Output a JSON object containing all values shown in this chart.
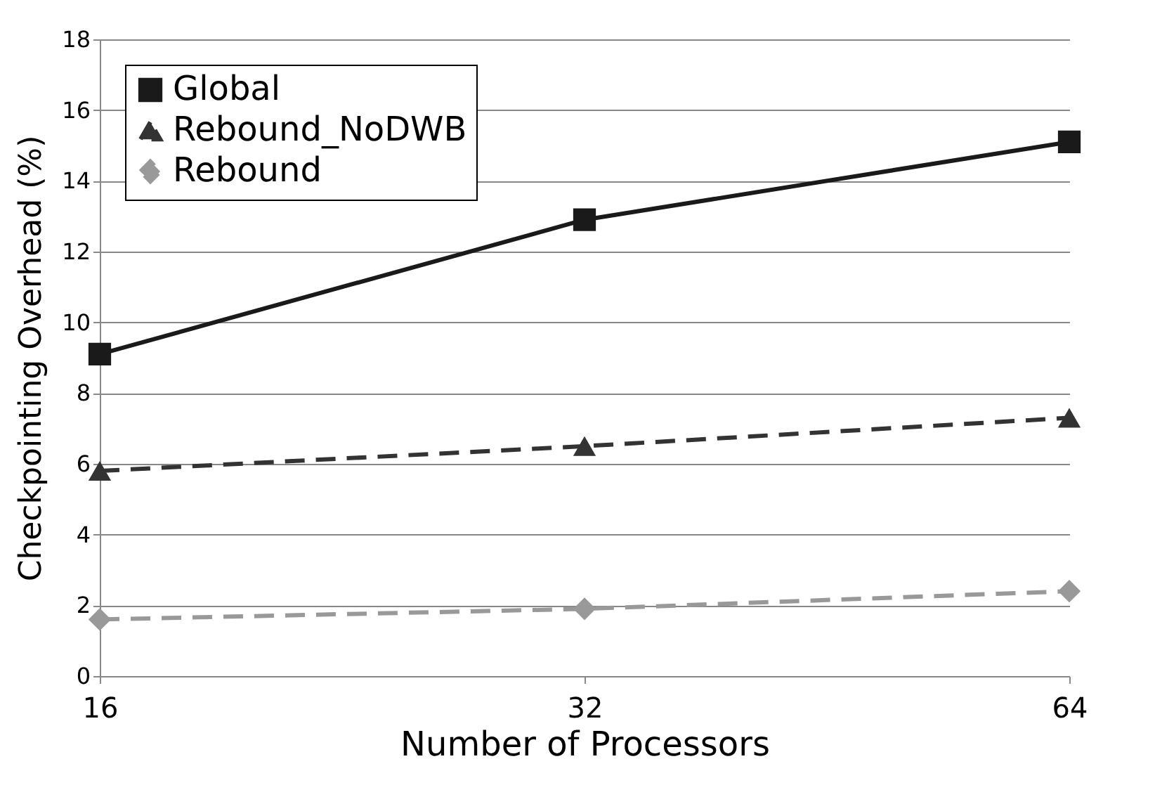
{
  "chart_data": {
    "type": "line",
    "xlabel": "Number of Processors",
    "ylabel": "Checkpointing Overhead (%)",
    "categories": [
      "16",
      "32",
      "64"
    ],
    "series": [
      {
        "name": "Global",
        "color": "#1a1a1a",
        "marker": "square",
        "line_style": "solid",
        "values": [
          9.1,
          12.9,
          15.1
        ]
      },
      {
        "name": "Rebound_NoDWB",
        "color": "#333333",
        "marker": "triangle",
        "line_style": "dashed",
        "values": [
          5.8,
          6.5,
          7.3
        ]
      },
      {
        "name": "Rebound",
        "color": "#999999",
        "marker": "diamond",
        "line_style": "dashed",
        "values": [
          1.6,
          1.9,
          2.4
        ]
      }
    ],
    "ylim": [
      0,
      18
    ],
    "yticks": [
      0,
      2,
      4,
      6,
      8,
      10,
      12,
      14,
      16,
      18
    ],
    "grid": "y",
    "legend": "top left"
  }
}
